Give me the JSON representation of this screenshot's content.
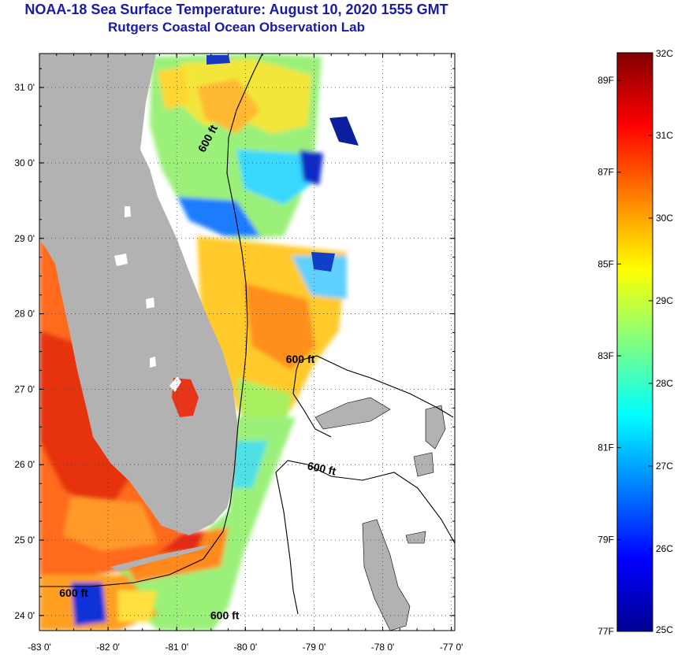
{
  "header": {
    "title": "NOAA-18 Sea Surface Temperature:  August 10, 2020 1555 GMT",
    "subtitle": "Rutgers Coastal Ocean Observation Lab"
  },
  "map": {
    "lon_range": [
      -83,
      -76.95
    ],
    "lat_range": [
      23.8,
      31.45
    ],
    "lon_ticks": [
      {
        "value": -83,
        "label": "-83 0'"
      },
      {
        "value": -82,
        "label": "-82 0'"
      },
      {
        "value": -81,
        "label": "-81 0'"
      },
      {
        "value": -80,
        "label": "-80 0'"
      },
      {
        "value": -79,
        "label": "-79 0'"
      },
      {
        "value": -78,
        "label": "-78 0'"
      },
      {
        "value": -77,
        "label": "-77 0'"
      }
    ],
    "lat_ticks": [
      {
        "value": 24,
        "label": "24 0'"
      },
      {
        "value": 25,
        "label": "25 0'"
      },
      {
        "value": 26,
        "label": "26 0'"
      },
      {
        "value": 27,
        "label": "27 0'"
      },
      {
        "value": 28,
        "label": "28 0'"
      },
      {
        "value": 29,
        "label": "29 0'"
      },
      {
        "value": 30,
        "label": "30 0'"
      },
      {
        "value": 31,
        "label": "31 0'"
      }
    ],
    "contour_labels": [
      {
        "text": "600 ft",
        "lon": -80.5,
        "lat": 30.3
      },
      {
        "text": "600 ft",
        "lon": -79.2,
        "lat": 27.35
      },
      {
        "text": "600 ft",
        "lon": -78.9,
        "lat": 25.9
      },
      {
        "text": "600 ft",
        "lon": -82.5,
        "lat": 24.25
      },
      {
        "text": "600 ft",
        "lon": -80.3,
        "lat": 23.95
      }
    ],
    "colors": {
      "land": "#b2b2b2",
      "ocean_nodata": "#ffffff"
    }
  },
  "colorbar": {
    "min_c": 25,
    "max_c": 32,
    "celsius_labels": [
      {
        "value": 32,
        "label": "32C"
      },
      {
        "value": 31,
        "label": "31C"
      },
      {
        "value": 30,
        "label": "30C"
      },
      {
        "value": 29,
        "label": "29C"
      },
      {
        "value": 28,
        "label": "28C"
      },
      {
        "value": 27,
        "label": "27C"
      },
      {
        "value": 26,
        "label": "26C"
      },
      {
        "value": 25,
        "label": "25C"
      }
    ],
    "fahrenheit_labels": [
      {
        "value": 89,
        "label": "89F"
      },
      {
        "value": 87,
        "label": "87F"
      },
      {
        "value": 85,
        "label": "85F"
      },
      {
        "value": 83,
        "label": "83F"
      },
      {
        "value": 81,
        "label": "81F"
      },
      {
        "value": 79,
        "label": "79F"
      },
      {
        "value": 77,
        "label": "77F"
      }
    ],
    "stops": [
      "#00008f",
      "#0000ff",
      "#0080ff",
      "#00ffff",
      "#80ff80",
      "#ffff00",
      "#ff8000",
      "#ff0000",
      "#800000"
    ]
  }
}
